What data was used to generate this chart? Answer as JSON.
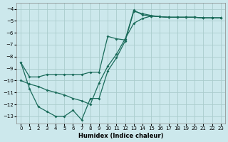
{
  "xlabel": "Humidex (Indice chaleur)",
  "background_color": "#cce8ec",
  "grid_color": "#aacccc",
  "line_color": "#1a6b5a",
  "xlim": [
    -0.5,
    23.5
  ],
  "ylim": [
    -13.6,
    -3.5
  ],
  "yticks": [
    -4,
    -5,
    -6,
    -7,
    -8,
    -9,
    -10,
    -11,
    -12,
    -13
  ],
  "xticks": [
    0,
    1,
    2,
    3,
    4,
    5,
    6,
    7,
    8,
    9,
    10,
    11,
    12,
    13,
    14,
    15,
    16,
    17,
    18,
    19,
    20,
    21,
    22,
    23
  ],
  "line1_x": [
    0,
    1,
    2,
    3,
    4,
    5,
    6,
    7,
    8,
    9,
    10,
    11,
    12,
    13,
    14,
    15,
    16,
    17,
    18,
    19,
    20,
    21,
    22,
    23
  ],
  "line1_y": [
    -8.5,
    -9.7,
    -9.7,
    -9.5,
    -9.5,
    -9.5,
    -9.5,
    -9.5,
    -9.3,
    -9.3,
    -6.3,
    -6.5,
    -6.6,
    -4.1,
    -4.5,
    -4.6,
    -4.65,
    -4.7,
    -4.7,
    -4.7,
    -4.7,
    -4.75,
    -4.75,
    -4.75
  ],
  "line2_x": [
    0,
    1,
    2,
    3,
    4,
    5,
    6,
    7,
    8,
    9,
    10,
    11,
    12,
    13,
    14,
    15,
    16,
    17,
    18,
    19,
    20,
    21,
    22,
    23
  ],
  "line2_y": [
    -8.5,
    -10.7,
    -12.2,
    -12.6,
    -13.0,
    -13.0,
    -12.5,
    -13.3,
    -11.5,
    -11.5,
    -9.2,
    -8.1,
    -6.7,
    -4.2,
    -4.4,
    -4.55,
    -4.65,
    -4.7,
    -4.7,
    -4.7,
    -4.7,
    -4.75,
    -4.75,
    -4.75
  ],
  "line3_x": [
    0,
    1,
    2,
    3,
    4,
    5,
    6,
    7,
    8,
    9,
    10,
    11,
    12,
    13,
    14,
    15,
    16,
    17,
    18,
    19,
    20,
    21,
    22,
    23
  ],
  "line3_y": [
    -10.0,
    -10.3,
    -10.5,
    -10.8,
    -11.0,
    -11.2,
    -11.5,
    -11.7,
    -12.0,
    -10.2,
    -8.8,
    -7.8,
    -6.5,
    -5.2,
    -4.8,
    -4.6,
    -4.65,
    -4.7,
    -4.7,
    -4.7,
    -4.7,
    -4.75,
    -4.75,
    -4.75
  ]
}
